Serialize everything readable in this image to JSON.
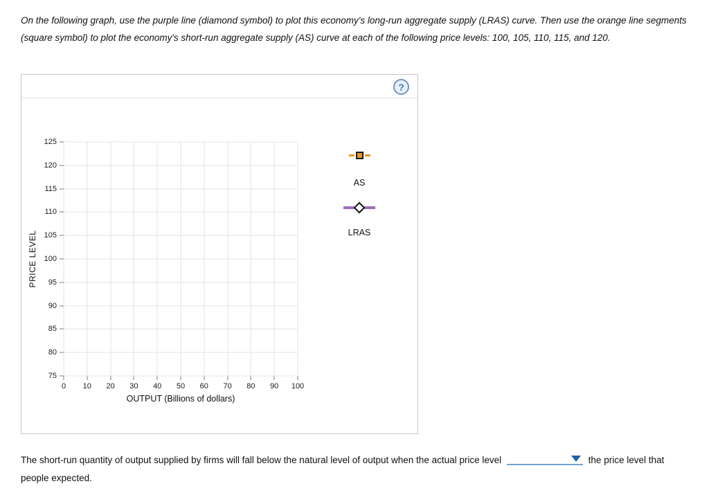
{
  "instructions": "On the following graph, use the purple line (diamond symbol) to plot this economy's long-run aggregate supply (LRAS) curve. Then use the orange line segments (square symbol) to plot the economy's short-run aggregate supply (AS) curve at each of the following price levels: 100, 105, 110, 115, and 120.",
  "panel": {
    "help_label": "?"
  },
  "chart_data": {
    "type": "scatter",
    "title": "",
    "xlabel": "OUTPUT (Billions of dollars)",
    "ylabel": "PRICE LEVEL",
    "xlim": [
      0,
      100
    ],
    "ylim": [
      75,
      125
    ],
    "x_ticks": [
      0,
      10,
      20,
      30,
      40,
      50,
      60,
      70,
      80,
      90,
      100
    ],
    "y_ticks": [
      75,
      80,
      85,
      90,
      95,
      100,
      105,
      110,
      115,
      120,
      125
    ],
    "grid": true,
    "legend_position": "right",
    "series": [
      {
        "name": "AS",
        "symbol": "square",
        "color": "#e8962a",
        "points": []
      },
      {
        "name": "LRAS",
        "symbol": "diamond",
        "color": "#9a6ec0",
        "points": []
      }
    ]
  },
  "legend": {
    "as_label": "AS",
    "lras_label": "LRAS"
  },
  "question": {
    "before": "The short-run quantity of output supplied by firms will fall below the natural level of output when the actual price level",
    "after": "the price level that people expected.",
    "dropdown_value": ""
  },
  "colors": {
    "dropdown_line": "#6fa4d8",
    "dropdown_arrow": "#2460a5",
    "help_border": "#7296c2",
    "help_text": "#4a7ab5"
  }
}
